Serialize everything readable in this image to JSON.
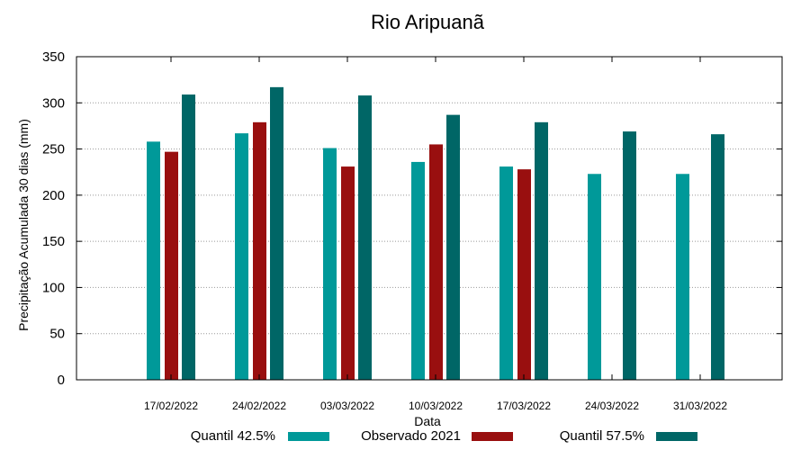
{
  "chart_data": {
    "type": "bar",
    "title": "Rio Aripuanã",
    "xlabel": "Data",
    "ylabel": "Precipitação Acumulada 30 dias (mm)",
    "ylim": [
      0,
      350
    ],
    "yticks": [
      "0",
      "50",
      "100",
      "150",
      "200",
      "250",
      "300",
      "350"
    ],
    "grid": true,
    "legend_position": "bottom",
    "categories": [
      "17/02/2022",
      "24/02/2022",
      "03/03/2022",
      "10/03/2022",
      "17/03/2022",
      "24/03/2022",
      "31/03/2022"
    ],
    "series": [
      {
        "name": "Quantil 42.5%",
        "color": "#009999",
        "values": [
          258,
          267,
          251,
          236,
          231,
          223,
          223
        ]
      },
      {
        "name": "Observado 2021",
        "color": "#990f0f",
        "values": [
          247,
          279,
          231,
          255,
          228,
          null,
          null
        ]
      },
      {
        "name": "Quantil 57.5%",
        "color": "#006666",
        "values": [
          309,
          317,
          308,
          287,
          279,
          269,
          266
        ]
      }
    ]
  }
}
